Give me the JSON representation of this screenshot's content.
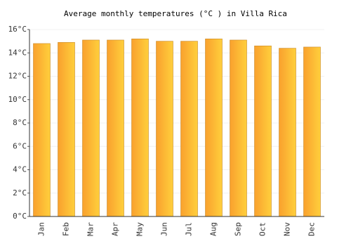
{
  "chart_data": {
    "type": "bar",
    "title": "Average monthly temperatures (°C ) in Villa Rica",
    "categories": [
      "Jan",
      "Feb",
      "Mar",
      "Apr",
      "May",
      "Jun",
      "Jul",
      "Aug",
      "Sep",
      "Oct",
      "Nov",
      "Dec"
    ],
    "values": [
      14.8,
      14.9,
      15.1,
      15.1,
      15.2,
      15.0,
      15.0,
      15.2,
      15.1,
      14.6,
      14.4,
      14.5
    ],
    "color": "#f9a12e",
    "ylim": [
      0,
      16
    ],
    "yticks": [
      {
        "value": 0,
        "label": "0°C"
      },
      {
        "value": 2,
        "label": "2°C"
      },
      {
        "value": 4,
        "label": "4°C"
      },
      {
        "value": 6,
        "label": "6°C"
      },
      {
        "value": 8,
        "label": "8°C"
      },
      {
        "value": 10,
        "label": "10°C"
      },
      {
        "value": 12,
        "label": "12°C"
      },
      {
        "value": 14,
        "label": "14°C"
      },
      {
        "value": 16,
        "label": "16°C"
      }
    ],
    "grid": true
  }
}
